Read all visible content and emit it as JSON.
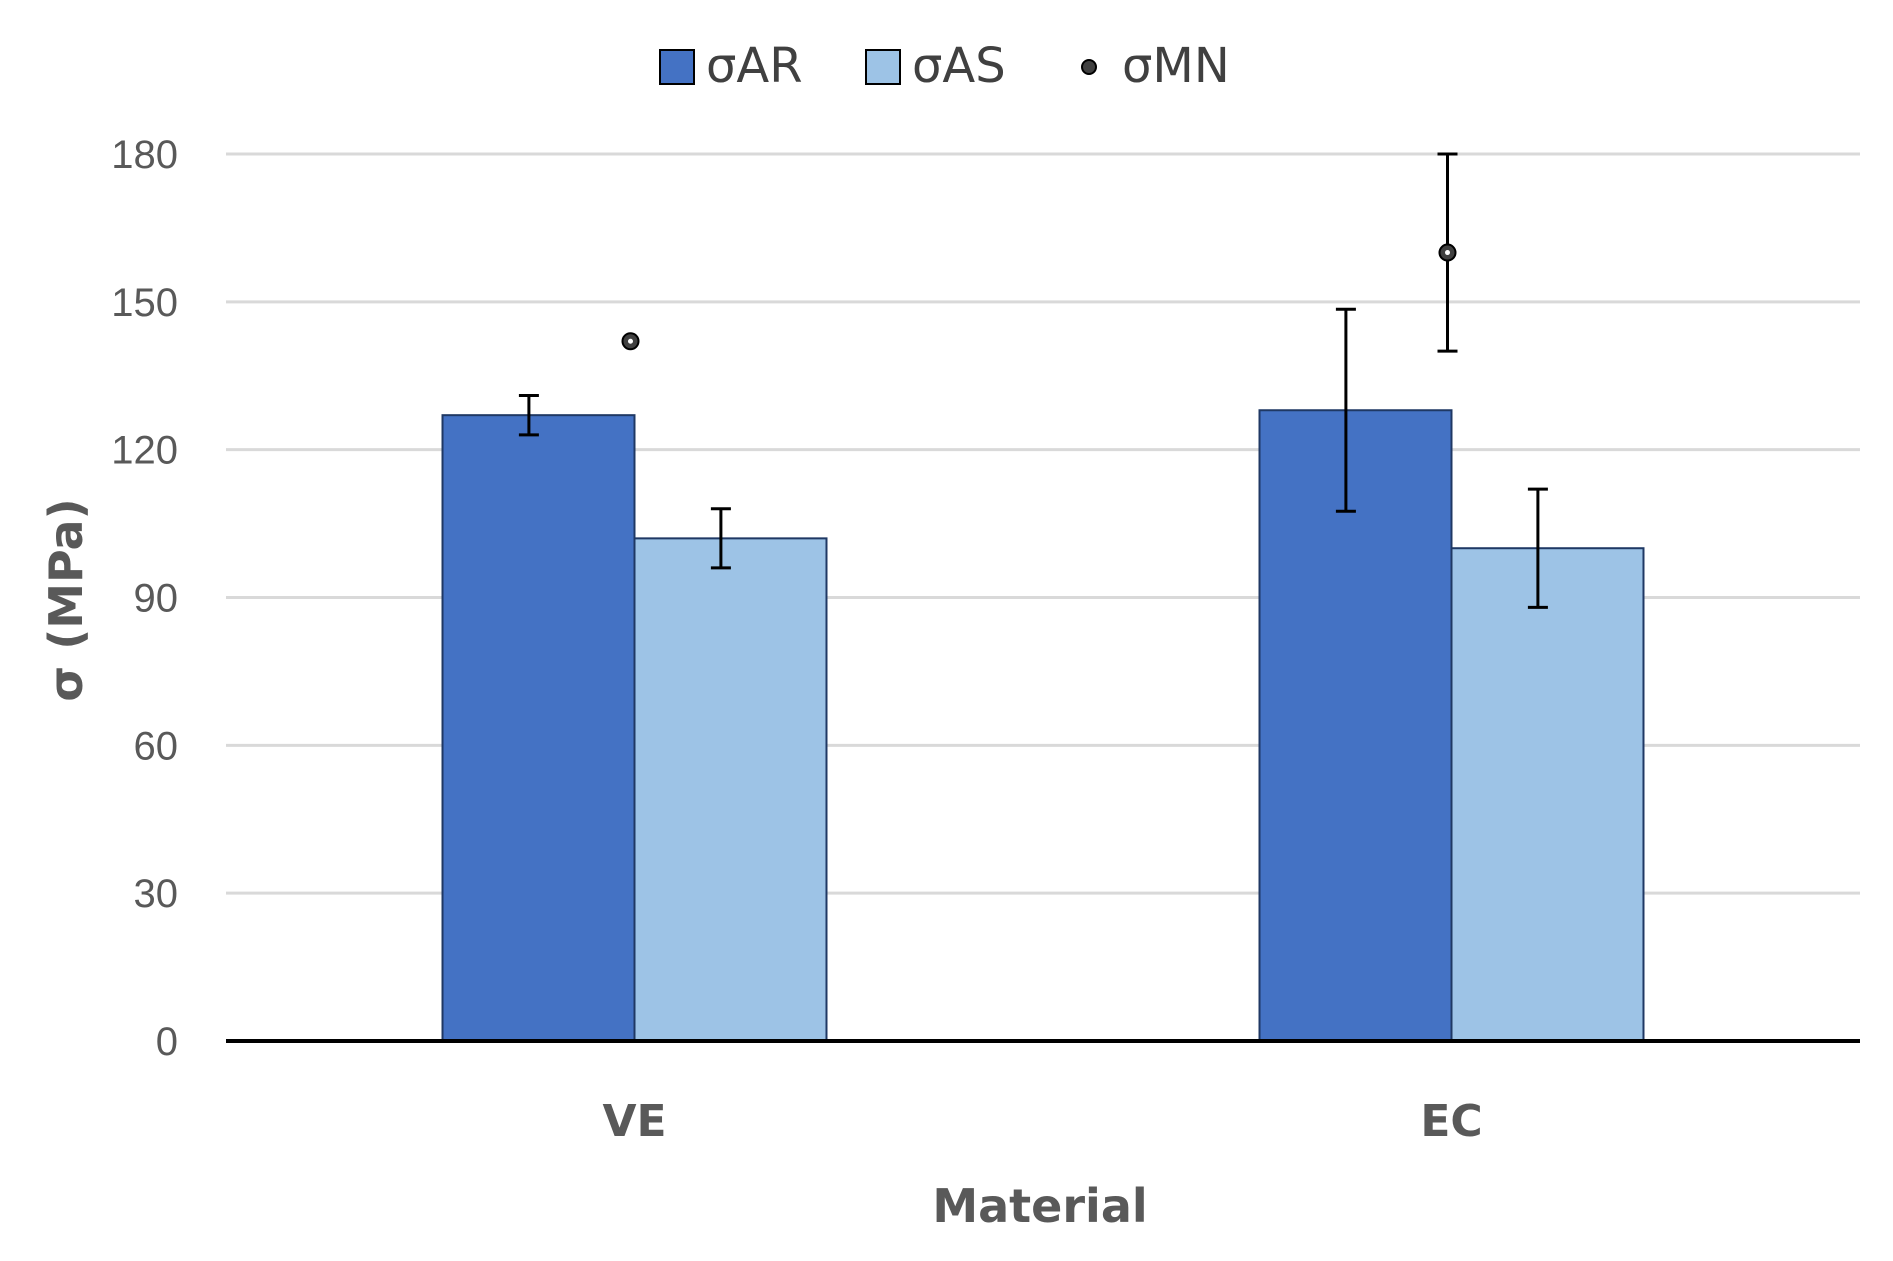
{
  "chart_data": {
    "type": "bar",
    "title": "",
    "xlabel": "Material",
    "ylabel": "σ (MPa)",
    "ylim": [
      0,
      180
    ],
    "yticks": [
      0,
      30,
      60,
      90,
      120,
      150,
      180
    ],
    "grid": true,
    "legend_position": "top",
    "categories": [
      "VE",
      "EC"
    ],
    "series": [
      {
        "name": "σAR",
        "kind": "bar",
        "color": "#4472C4",
        "values": [
          127,
          128
        ],
        "errors": [
          4,
          20.5
        ]
      },
      {
        "name": "σAS",
        "kind": "bar",
        "color": "#9DC3E6",
        "values": [
          102,
          100
        ],
        "errors": [
          6,
          12
        ]
      },
      {
        "name": "σMN",
        "kind": "point",
        "color": "#000000",
        "values": [
          142,
          160
        ],
        "errors": [
          0,
          20
        ]
      }
    ]
  }
}
